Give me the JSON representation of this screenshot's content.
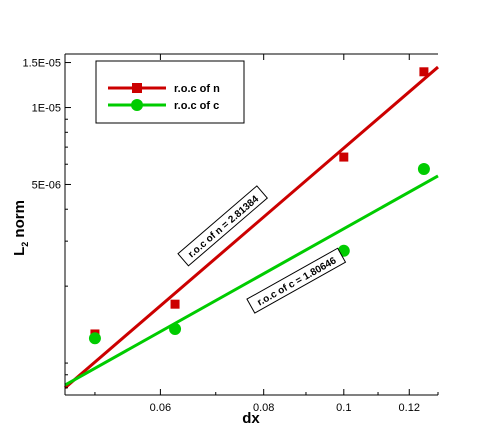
{
  "chart_data": {
    "type": "scatter",
    "title": "",
    "xlabel": "dx",
    "ylabel": {
      "main": "L",
      "sub": "2",
      "rest": " norm"
    },
    "xscale": "log",
    "yscale": "log",
    "xlim": [
      0.046,
      0.13
    ],
    "ylim": [
      7.5e-07,
      1.62e-05
    ],
    "xticks": [
      {
        "value": 0.06,
        "label": "0.06"
      },
      {
        "value": 0.08,
        "label": "0.08"
      },
      {
        "value": 0.1,
        "label": "0.1"
      },
      {
        "value": 0.12,
        "label": "0.12"
      }
    ],
    "yticks": [
      {
        "value": 1.5e-05,
        "label": "1.5E-05"
      },
      {
        "value": 1e-05,
        "label": "1E-05"
      },
      {
        "value": 5e-06,
        "label": "5E-06"
      }
    ],
    "series": [
      {
        "name": "r.o.c of n",
        "color": "#cc0000",
        "marker": "square",
        "points": [
          {
            "x": 0.05,
            "y": 1.3e-06
          },
          {
            "x": 0.0625,
            "y": 1.7e-06
          },
          {
            "x": 0.1,
            "y": 6.4e-06
          },
          {
            "x": 0.125,
            "y": 1.38e-05
          }
        ],
        "fit": {
          "x": [
            0.046,
            0.13
          ],
          "y": [
            8e-07,
            1.44e-05
          ]
        }
      },
      {
        "name": "r.o.c of c",
        "color": "#00cc00",
        "marker": "circle",
        "points": [
          {
            "x": 0.05,
            "y": 1.25e-06
          },
          {
            "x": 0.0625,
            "y": 1.36e-06
          },
          {
            "x": 0.1,
            "y": 2.75e-06
          },
          {
            "x": 0.125,
            "y": 5.75e-06
          }
        ],
        "fit": {
          "x": [
            0.046,
            0.13
          ],
          "y": [
            8.2e-07,
            5.4e-06
          ]
        }
      }
    ],
    "annotations": [
      {
        "text": "r.o.c of n = 2.81384",
        "series": 0,
        "at_x": 0.074
      },
      {
        "text": "r.o.c of c = 1.80646",
        "series": 1,
        "at_x": 0.085
      }
    ],
    "legend": {
      "position": "top-left",
      "entries": [
        "r.o.c of n",
        "r.o.c of c"
      ]
    },
    "grid": false
  }
}
